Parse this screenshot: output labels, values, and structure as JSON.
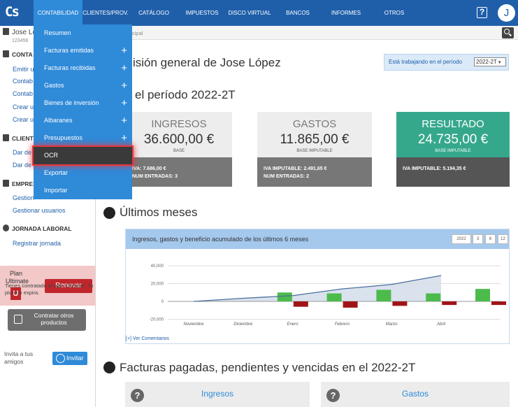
{
  "topbar": {
    "logo": "Cs",
    "nav": [
      "CONTABILIDAD",
      "CLIENTES/PROV.",
      "CATÁLOGO",
      "IMPUESTOS",
      "DISCO VIRTUAL",
      "BANCOS",
      "INFORMES",
      "OTROS"
    ],
    "help_icon": "question-icon",
    "user_initial": "J"
  },
  "sidebar": {
    "user_name": "Jose Lo",
    "user_id": "123456",
    "sections": [
      {
        "label": "CONTA",
        "icon": "document-icon",
        "links": [
          "Emitir u",
          "Contab",
          "Contab",
          "Crear u",
          "Crear u"
        ]
      },
      {
        "label": "CLIENT",
        "icon": "contacts-icon",
        "links": [
          "Dar de",
          "Dar de"
        ]
      },
      {
        "label": "EMPRES",
        "icon": "briefcase-icon",
        "links": [
          "Gestion",
          "Gestionar usuarios"
        ]
      },
      {
        "label": "JORNADA LABORAL",
        "icon": "clock-icon",
        "links": [
          "Registrar jornada"
        ]
      }
    ],
    "plan_label_1": "Plan",
    "plan_label_2": "Ultimate",
    "plan_badge": "U",
    "renew_label": "Renovar",
    "plan_text": "Tienes contratado el plan Ultimate. Tu plan no expira.",
    "buy_label": "Contratar otros productos",
    "invite_text_1": "Invita a tus",
    "invite_text_2": "amigos",
    "invite_button": "Invitar"
  },
  "breadcrumb": "cipal",
  "main": {
    "title": "isión general de Jose López",
    "period_prefix": "Está trabajando en el período",
    "period_value": "2022-2T",
    "subtitle": "el período 2022-2T",
    "cards": [
      {
        "head": "INGRESOS",
        "amount": "36.600,00 €",
        "base": "BASE",
        "line1_label": "IVA:",
        "line1_value": "7.686,00 €",
        "line2_label": "NUM ENTRADAS:",
        "line2_value": "3"
      },
      {
        "head": "GASTOS",
        "amount": "11.865,00 €",
        "base": "BASE IMPUTABLE",
        "line1_label": "IVA IMPUTABLE:",
        "line1_value": "2.491,65 €",
        "line2_label": "NUM ENTRADAS:",
        "line2_value": "2"
      },
      {
        "head": "RESULTADO",
        "amount": "24.735,00 €",
        "base": "BASE IMPUTABLE",
        "line1_label": "IVA IMPUTABLE:",
        "line1_value": "5.194,35 €",
        "line2_label": "",
        "line2_value": ""
      }
    ],
    "ultimos_title": "Últimos meses",
    "chart_title": "Ingresos, gastos y beneficio acumulado de los últimos 6 meses",
    "chart_buttons": [
      "2022",
      "3",
      "6",
      "12"
    ],
    "ver_comentarios": "[+] Ver Comentarios",
    "facturas_title": "Facturas pagadas, pendientes y vencidas en el 2022-2T",
    "summary_cards": [
      "Ingresos",
      "Gastos"
    ]
  },
  "dropdown": {
    "items": [
      {
        "label": "Resumen",
        "plus": false
      },
      {
        "label": "Facturas emitidas",
        "plus": true
      },
      {
        "label": "Facturas recibidas",
        "plus": true
      },
      {
        "label": "Gastos",
        "plus": true
      },
      {
        "label": "Bienes de inversión",
        "plus": true
      },
      {
        "label": "Albaranes",
        "plus": true
      },
      {
        "label": "Presupuestos",
        "plus": true
      },
      {
        "label": "OCR",
        "plus": false,
        "highlighted": true
      },
      {
        "label": "Exportar",
        "plus": false
      },
      {
        "label": "Importar",
        "plus": false
      }
    ]
  },
  "colors": {
    "nav": "#1f5faa",
    "accent": "#2f8ad8",
    "income": "#4cbb4c",
    "expense": "#a01418",
    "result": "#35a88c",
    "line": "#4a6fa0"
  },
  "chart_data": {
    "type": "bar",
    "categories": [
      "Noviembre",
      "Diciembre",
      "Enero",
      "Febrero",
      "Marzo",
      "Abril"
    ],
    "series": [
      {
        "values": [
          0,
          10000,
          9000,
          13000,
          9000,
          14000
        ]
      },
      {
        "values": [
          0,
          -6000,
          -7000,
          -5000,
          -4000,
          -4000
        ]
      },
      {
        "values": [
          0,
          3500,
          6500,
          14000,
          19000,
          29000
        ]
      }
    ],
    "y_ticks": [
      "40,000",
      "20,000",
      "0",
      "-20,000"
    ],
    "ylim": [
      -20000,
      40000
    ]
  }
}
